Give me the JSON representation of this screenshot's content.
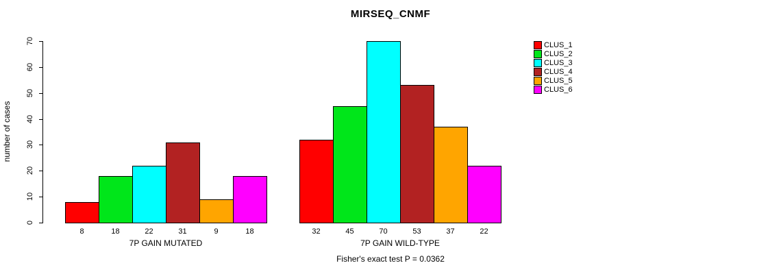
{
  "chart_data": {
    "type": "bar",
    "title": "MIRSEQ_CNMF",
    "ylabel": "number of cases",
    "ylim": [
      0,
      70
    ],
    "yticks": [
      0,
      10,
      20,
      30,
      40,
      50,
      60,
      70
    ],
    "grid": false,
    "legend_position": "right",
    "groups": [
      {
        "label": "7P GAIN MUTATED",
        "values": [
          8,
          18,
          22,
          31,
          9,
          18
        ]
      },
      {
        "label": "7P GAIN WILD-TYPE",
        "values": [
          32,
          45,
          70,
          53,
          37,
          22
        ]
      }
    ],
    "legend": [
      {
        "label": "CLUS_1",
        "color": "#FF0000"
      },
      {
        "label": "CLUS_2",
        "color": "#00E61A"
      },
      {
        "label": "CLUS_3",
        "color": "#00FFFF"
      },
      {
        "label": "CLUS_4",
        "color": "#B22222"
      },
      {
        "label": "CLUS_5",
        "color": "#FFA500"
      },
      {
        "label": "CLUS_6",
        "color": "#FF00FF"
      }
    ],
    "footnote": "Fisher's exact test P = 0.0362"
  }
}
